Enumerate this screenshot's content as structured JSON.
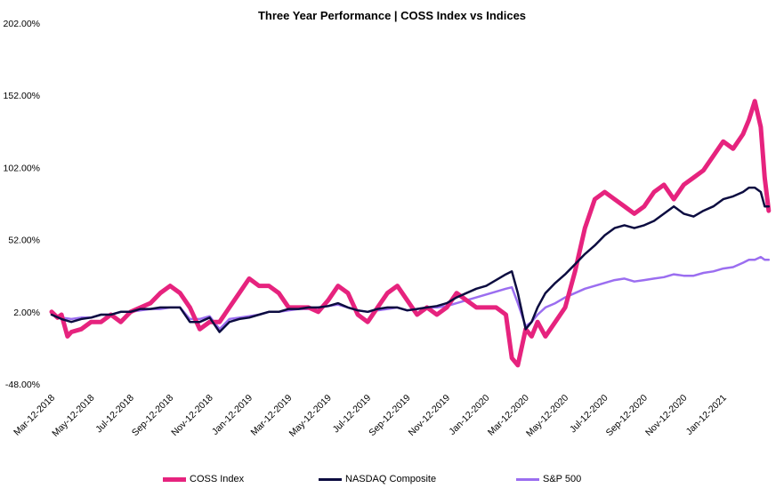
{
  "chart_data": {
    "type": "line",
    "title": "Three Year Performance | COSS Index vs Indices",
    "ylim": [
      -48,
      202
    ],
    "y_ticks": [
      "202.00%",
      "152.00%",
      "102.00%",
      "52.00%",
      "2.00%",
      "-48.00%"
    ],
    "y_tick_values": [
      202,
      152,
      102,
      52,
      2,
      -48
    ],
    "x_tick_labels": [
      "Mar-12-2018",
      "May-12-2018",
      "Jul-12-2018",
      "Sep-12-2018",
      "Nov-12-2018",
      "Jan-12-2019",
      "Mar-12-2019",
      "May-12-2019",
      "Jul-12-2019",
      "Sep-12-2019",
      "Nov-12-2019",
      "Jan-12-2020",
      "Mar-12-2020",
      "May-12-2020",
      "Jul-12-2020",
      "Sep-12-2020",
      "Nov-12-2020",
      "Jan-12-2021"
    ],
    "x_tick_months": [
      0,
      2,
      4,
      6,
      8,
      10,
      12,
      14,
      16,
      18,
      20,
      22,
      24,
      26,
      28,
      30,
      32,
      34
    ],
    "x_range_months": [
      0,
      36.4
    ],
    "legend_position": "bottom",
    "grid": false,
    "series": [
      {
        "name": "COSS Index",
        "color": "#e6237e",
        "x_months": [
          0,
          0.3,
          0.5,
          0.8,
          1.0,
          1.5,
          2.0,
          2.5,
          3.0,
          3.5,
          4.0,
          4.5,
          5.0,
          5.5,
          6.0,
          6.5,
          7.0,
          7.5,
          8.0,
          8.5,
          9.0,
          9.5,
          10.0,
          10.5,
          11.0,
          11.5,
          12.0,
          12.5,
          13.0,
          13.5,
          14.0,
          14.5,
          15.0,
          15.5,
          16.0,
          16.5,
          17.0,
          17.5,
          18.0,
          18.5,
          19.0,
          19.5,
          20.0,
          20.5,
          21.0,
          21.5,
          22.0,
          22.5,
          23.0,
          23.3,
          23.6,
          24.0,
          24.3,
          24.6,
          25.0,
          25.5,
          26.0,
          26.5,
          27.0,
          27.5,
          28.0,
          28.5,
          29.0,
          29.5,
          30.0,
          30.5,
          31.0,
          31.5,
          32.0,
          32.5,
          33.0,
          33.5,
          34.0,
          34.5,
          35.0,
          35.3,
          35.6,
          35.9,
          36.1,
          36.3
        ],
        "values": [
          2,
          -2,
          0,
          -15,
          -12,
          -10,
          -5,
          -5,
          0,
          -5,
          2,
          5,
          8,
          15,
          20,
          15,
          5,
          -10,
          -5,
          -5,
          5,
          15,
          25,
          20,
          20,
          15,
          5,
          5,
          5,
          2,
          10,
          20,
          15,
          0,
          -5,
          5,
          15,
          20,
          10,
          0,
          5,
          0,
          5,
          15,
          10,
          5,
          5,
          5,
          0,
          -30,
          -35,
          -10,
          -15,
          -5,
          -15,
          -5,
          5,
          30,
          60,
          80,
          85,
          80,
          75,
          70,
          75,
          85,
          90,
          80,
          90,
          95,
          100,
          110,
          120,
          115,
          125,
          135,
          148,
          130,
          95,
          72
        ]
      },
      {
        "name": "NASDAQ Composite",
        "color": "#0c0c40",
        "x_months": [
          0,
          0.5,
          1.0,
          1.5,
          2.0,
          2.5,
          3.0,
          3.5,
          4.0,
          4.5,
          5.0,
          5.5,
          6.0,
          6.5,
          7.0,
          7.5,
          8.0,
          8.5,
          9.0,
          9.5,
          10.0,
          10.5,
          11.0,
          11.5,
          12.0,
          12.5,
          13.0,
          13.5,
          14.0,
          14.5,
          15.0,
          15.5,
          16.0,
          16.5,
          17.0,
          17.5,
          18.0,
          18.5,
          19.0,
          19.5,
          20.0,
          20.5,
          21.0,
          21.5,
          22.0,
          22.5,
          23.0,
          23.3,
          23.6,
          24.0,
          24.3,
          24.6,
          25.0,
          25.5,
          26.0,
          26.5,
          27.0,
          27.5,
          28.0,
          28.5,
          29.0,
          29.5,
          30.0,
          30.5,
          31.0,
          31.5,
          32.0,
          32.5,
          33.0,
          33.5,
          34.0,
          34.5,
          35.0,
          35.3,
          35.6,
          35.9,
          36.1,
          36.3
        ],
        "values": [
          0,
          -3,
          -5,
          -3,
          -2,
          0,
          0,
          2,
          2,
          4,
          4,
          5,
          5,
          5,
          -5,
          -5,
          -2,
          -12,
          -5,
          -3,
          -2,
          0,
          2,
          2,
          4,
          4,
          5,
          5,
          6,
          8,
          5,
          3,
          2,
          4,
          5,
          5,
          3,
          4,
          5,
          6,
          8,
          12,
          15,
          18,
          20,
          24,
          28,
          30,
          15,
          -10,
          -5,
          5,
          15,
          22,
          28,
          35,
          42,
          48,
          55,
          60,
          62,
          60,
          62,
          65,
          70,
          75,
          70,
          68,
          72,
          75,
          80,
          82,
          85,
          88,
          88,
          85,
          75,
          75
        ]
      },
      {
        "name": "S&P 500",
        "color": "#9b6ef0",
        "x_months": [
          0,
          0.5,
          1.0,
          1.5,
          2.0,
          2.5,
          3.0,
          3.5,
          4.0,
          4.5,
          5.0,
          5.5,
          6.0,
          6.5,
          7.0,
          7.5,
          8.0,
          8.5,
          9.0,
          9.5,
          10.0,
          10.5,
          11.0,
          11.5,
          12.0,
          12.5,
          13.0,
          13.5,
          14.0,
          14.5,
          15.0,
          15.5,
          16.0,
          16.5,
          17.0,
          17.5,
          18.0,
          18.5,
          19.0,
          19.5,
          20.0,
          20.5,
          21.0,
          21.5,
          22.0,
          22.5,
          23.0,
          23.3,
          23.6,
          24.0,
          24.3,
          24.6,
          25.0,
          25.5,
          26.0,
          26.5,
          27.0,
          27.5,
          28.0,
          28.5,
          29.0,
          29.5,
          30.0,
          30.5,
          31.0,
          31.5,
          32.0,
          32.5,
          33.0,
          33.5,
          34.0,
          34.5,
          35.0,
          35.3,
          35.6,
          35.9,
          36.1,
          36.3
        ],
        "values": [
          0,
          -2,
          -3,
          -2,
          -2,
          0,
          0,
          2,
          2,
          3,
          4,
          4,
          5,
          5,
          -3,
          -3,
          -1,
          -10,
          -3,
          -2,
          -1,
          0,
          2,
          2,
          3,
          4,
          4,
          5,
          6,
          7,
          5,
          3,
          2,
          3,
          4,
          5,
          3,
          4,
          5,
          5,
          6,
          8,
          10,
          12,
          14,
          16,
          18,
          19,
          8,
          -8,
          -5,
          0,
          5,
          8,
          12,
          15,
          18,
          20,
          22,
          24,
          25,
          23,
          24,
          25,
          26,
          28,
          27,
          27,
          29,
          30,
          32,
          33,
          36,
          38,
          38,
          40,
          38,
          38
        ]
      }
    ]
  }
}
